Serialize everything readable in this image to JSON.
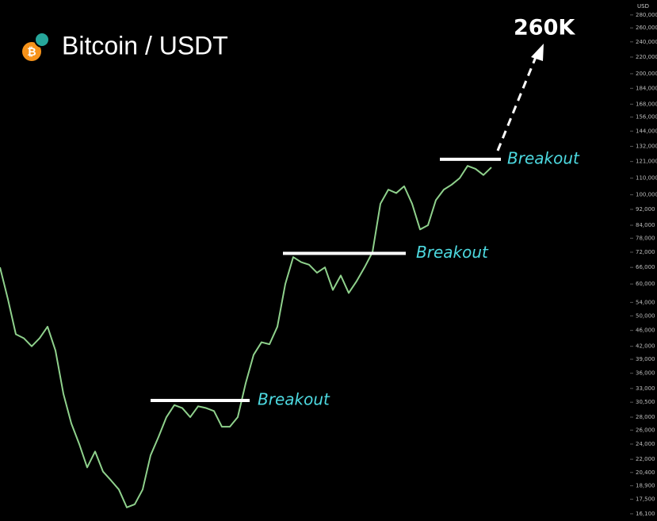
{
  "chart_data": {
    "type": "line",
    "title": "Bitcoin / USDT",
    "currency": "USD",
    "log_scale": true,
    "color": "#8fd18c",
    "values": [
      66000,
      55000,
      45000,
      44000,
      42000,
      44000,
      47000,
      41000,
      32000,
      27000,
      24000,
      21000,
      23000,
      20500,
      19500,
      18500,
      16700,
      17000,
      18500,
      22500,
      25000,
      28000,
      30000,
      29500,
      28000,
      29800,
      29500,
      29000,
      26500,
      26500,
      28000,
      34000,
      40000,
      43000,
      42500,
      47000,
      60000,
      70000,
      68000,
      67000,
      64000,
      66000,
      58000,
      63000,
      57000,
      61000,
      66000,
      72000,
      95000,
      103000,
      101000,
      105000,
      95000,
      82000,
      84000,
      97000,
      103000,
      106000,
      110000,
      118000,
      116000,
      112000,
      117000
    ],
    "ylim": [
      15450,
      305000
    ],
    "yticks": [
      {
        "value": 280000,
        "label": "280,000"
      },
      {
        "value": 260000,
        "label": "260,000"
      },
      {
        "value": 240000,
        "label": "240,000"
      },
      {
        "value": 220000,
        "label": "220,000"
      },
      {
        "value": 200000,
        "label": "200,000"
      },
      {
        "value": 184000,
        "label": "184,000"
      },
      {
        "value": 168000,
        "label": "168,000"
      },
      {
        "value": 156000,
        "label": "156,000"
      },
      {
        "value": 144000,
        "label": "144,000"
      },
      {
        "value": 132000,
        "label": "132,000"
      },
      {
        "value": 121000,
        "label": "121,000"
      },
      {
        "value": 110000,
        "label": "110,000"
      },
      {
        "value": 100000,
        "label": "100,000"
      },
      {
        "value": 92000,
        "label": "92,000"
      },
      {
        "value": 84000,
        "label": "84,000"
      },
      {
        "value": 78000,
        "label": "78,000"
      },
      {
        "value": 72000,
        "label": "72,000"
      },
      {
        "value": 66000,
        "label": "66,000"
      },
      {
        "value": 60000,
        "label": "60,000"
      },
      {
        "value": 54000,
        "label": "54,000"
      },
      {
        "value": 50000,
        "label": "50,000"
      },
      {
        "value": 46000,
        "label": "46,000"
      },
      {
        "value": 42000,
        "label": "42,000"
      },
      {
        "value": 39000,
        "label": "39,000"
      },
      {
        "value": 36000,
        "label": "36,000"
      },
      {
        "value": 33000,
        "label": "33,000"
      },
      {
        "value": 30500,
        "label": "30,500"
      },
      {
        "value": 28000,
        "label": "28,000"
      },
      {
        "value": 26000,
        "label": "26,000"
      },
      {
        "value": 24000,
        "label": "24,000"
      },
      {
        "value": 22000,
        "label": "22,000"
      },
      {
        "value": 20400,
        "label": "20,400"
      },
      {
        "value": 18900,
        "label": "18,900"
      },
      {
        "value": 17500,
        "label": "17,500"
      },
      {
        "value": 16100,
        "label": "16,100"
      }
    ],
    "levels": [
      {
        "label": "Breakout",
        "value": 30800
      },
      {
        "label": "Breakout",
        "value": 71500
      },
      {
        "label": "Breakout",
        "value": 122500
      }
    ],
    "target_label": "260K"
  }
}
